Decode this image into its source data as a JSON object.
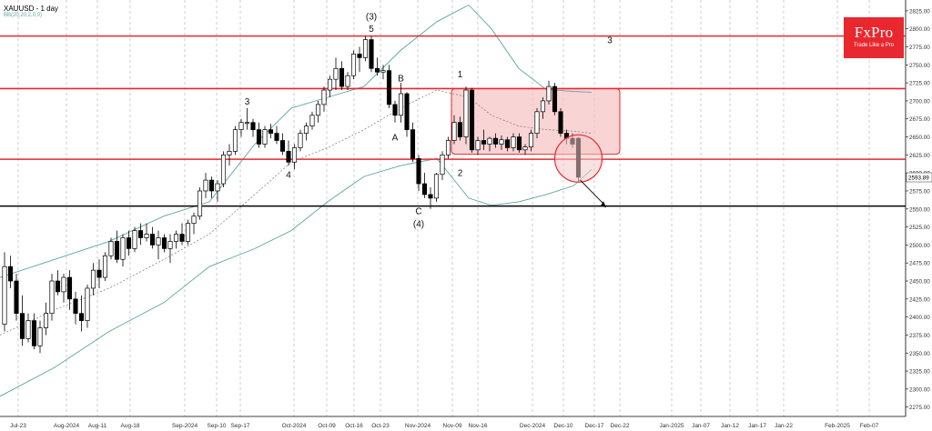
{
  "header": {
    "symbol": "XAUUSD - 1 day",
    "indicator": "BB(20,20,2,0,0)"
  },
  "logo": {
    "name": "FxPro",
    "tagline": "Trade Like a Pro"
  },
  "colors": {
    "bullish": "#ffffff",
    "bearish": "#000000",
    "level_line": "#e8282e",
    "support_line": "#000000",
    "bollinger": "#5aa5a0",
    "box_fill": "#f7c6c6"
  },
  "chart_data": {
    "type": "candlestick",
    "ylim": [
      2262,
      2840
    ],
    "y_ticks": [
      2275,
      2300,
      2325,
      2350,
      2375,
      2400,
      2425,
      2450,
      2475,
      2500,
      2525,
      2550,
      2575,
      2600,
      2625,
      2650,
      2675,
      2700,
      2725,
      2750,
      2775,
      2800,
      2825
    ],
    "x_tick_labels": [
      "Jul-23",
      "Aug-2024",
      "Aug-11",
      "Aug-18",
      "Sep-2024",
      "Sep-10",
      "Sep-17",
      "Oct-2024",
      "Oct-09",
      "Oct-16",
      "Oct-23",
      "Nov-2024",
      "Nov-09",
      "Nov-16",
      "Dec-2024",
      "Dec-10",
      "Dec-17",
      "Dec-22",
      "Jan-2025",
      "Jan-07",
      "Jan-12",
      "Jan-17",
      "Jan-22",
      "Feb-2025",
      "Feb-07"
    ],
    "last_price": 2593.89,
    "horizontal_levels": [
      {
        "value": 2790,
        "kind": "resistance"
      },
      {
        "value": 2717,
        "kind": "resistance"
      },
      {
        "value": 2619,
        "kind": "support"
      },
      {
        "value": 2554,
        "kind": "support"
      }
    ],
    "candles": [
      {
        "o": 2390,
        "h": 2490,
        "l": 2380,
        "c": 2470
      },
      {
        "o": 2470,
        "h": 2485,
        "l": 2440,
        "c": 2450
      },
      {
        "o": 2450,
        "h": 2460,
        "l": 2395,
        "c": 2405
      },
      {
        "o": 2405,
        "h": 2430,
        "l": 2360,
        "c": 2370
      },
      {
        "o": 2370,
        "h": 2405,
        "l": 2365,
        "c": 2395
      },
      {
        "o": 2395,
        "h": 2405,
        "l": 2355,
        "c": 2360
      },
      {
        "o": 2360,
        "h": 2395,
        "l": 2350,
        "c": 2385
      },
      {
        "o": 2385,
        "h": 2420,
        "l": 2375,
        "c": 2405
      },
      {
        "o": 2405,
        "h": 2460,
        "l": 2395,
        "c": 2450
      },
      {
        "o": 2450,
        "h": 2465,
        "l": 2430,
        "c": 2435
      },
      {
        "o": 2435,
        "h": 2460,
        "l": 2420,
        "c": 2455
      },
      {
        "o": 2455,
        "h": 2465,
        "l": 2410,
        "c": 2425
      },
      {
        "o": 2425,
        "h": 2435,
        "l": 2390,
        "c": 2405
      },
      {
        "o": 2405,
        "h": 2430,
        "l": 2380,
        "c": 2395
      },
      {
        "o": 2395,
        "h": 2445,
        "l": 2385,
        "c": 2440
      },
      {
        "o": 2440,
        "h": 2475,
        "l": 2430,
        "c": 2465
      },
      {
        "o": 2465,
        "h": 2480,
        "l": 2440,
        "c": 2455
      },
      {
        "o": 2455,
        "h": 2490,
        "l": 2450,
        "c": 2485
      },
      {
        "o": 2485,
        "h": 2510,
        "l": 2480,
        "c": 2505
      },
      {
        "o": 2505,
        "h": 2520,
        "l": 2475,
        "c": 2480
      },
      {
        "o": 2480,
        "h": 2515,
        "l": 2470,
        "c": 2510
      },
      {
        "o": 2510,
        "h": 2520,
        "l": 2485,
        "c": 2495
      },
      {
        "o": 2495,
        "h": 2525,
        "l": 2490,
        "c": 2520
      },
      {
        "o": 2520,
        "h": 2530,
        "l": 2500,
        "c": 2510
      },
      {
        "o": 2510,
        "h": 2530,
        "l": 2505,
        "c": 2515
      },
      {
        "o": 2515,
        "h": 2525,
        "l": 2495,
        "c": 2500
      },
      {
        "o": 2500,
        "h": 2520,
        "l": 2480,
        "c": 2510
      },
      {
        "o": 2510,
        "h": 2515,
        "l": 2490,
        "c": 2495
      },
      {
        "o": 2495,
        "h": 2515,
        "l": 2475,
        "c": 2505
      },
      {
        "o": 2505,
        "h": 2520,
        "l": 2495,
        "c": 2515
      },
      {
        "o": 2515,
        "h": 2530,
        "l": 2500,
        "c": 2505
      },
      {
        "o": 2505,
        "h": 2535,
        "l": 2500,
        "c": 2530
      },
      {
        "o": 2530,
        "h": 2545,
        "l": 2515,
        "c": 2540
      },
      {
        "o": 2540,
        "h": 2580,
        "l": 2535,
        "c": 2575
      },
      {
        "o": 2575,
        "h": 2600,
        "l": 2565,
        "c": 2590
      },
      {
        "o": 2590,
        "h": 2595,
        "l": 2565,
        "c": 2575
      },
      {
        "o": 2575,
        "h": 2590,
        "l": 2560,
        "c": 2585
      },
      {
        "o": 2585,
        "h": 2630,
        "l": 2580,
        "c": 2625
      },
      {
        "o": 2625,
        "h": 2640,
        "l": 2610,
        "c": 2630
      },
      {
        "o": 2630,
        "h": 2665,
        "l": 2625,
        "c": 2660
      },
      {
        "o": 2660,
        "h": 2675,
        "l": 2650,
        "c": 2670
      },
      {
        "o": 2670,
        "h": 2690,
        "l": 2660,
        "c": 2670
      },
      {
        "o": 2670,
        "h": 2675,
        "l": 2650,
        "c": 2660
      },
      {
        "o": 2660,
        "h": 2670,
        "l": 2635,
        "c": 2640
      },
      {
        "o": 2640,
        "h": 2665,
        "l": 2635,
        "c": 2660
      },
      {
        "o": 2660,
        "h": 2668,
        "l": 2648,
        "c": 2655
      },
      {
        "o": 2655,
        "h": 2665,
        "l": 2640,
        "c": 2645
      },
      {
        "o": 2645,
        "h": 2655,
        "l": 2625,
        "c": 2630
      },
      {
        "o": 2630,
        "h": 2645,
        "l": 2610,
        "c": 2615
      },
      {
        "o": 2615,
        "h": 2640,
        "l": 2605,
        "c": 2635
      },
      {
        "o": 2635,
        "h": 2660,
        "l": 2630,
        "c": 2655
      },
      {
        "o": 2655,
        "h": 2670,
        "l": 2645,
        "c": 2665
      },
      {
        "o": 2665,
        "h": 2685,
        "l": 2660,
        "c": 2680
      },
      {
        "o": 2680,
        "h": 2700,
        "l": 2670,
        "c": 2695
      },
      {
        "o": 2695,
        "h": 2720,
        "l": 2685,
        "c": 2715
      },
      {
        "o": 2715,
        "h": 2735,
        "l": 2705,
        "c": 2730
      },
      {
        "o": 2730,
        "h": 2760,
        "l": 2715,
        "c": 2745
      },
      {
        "o": 2745,
        "h": 2755,
        "l": 2715,
        "c": 2720
      },
      {
        "o": 2720,
        "h": 2740,
        "l": 2715,
        "c": 2735
      },
      {
        "o": 2735,
        "h": 2770,
        "l": 2730,
        "c": 2765
      },
      {
        "o": 2765,
        "h": 2775,
        "l": 2740,
        "c": 2760
      },
      {
        "o": 2760,
        "h": 2790,
        "l": 2755,
        "c": 2785
      },
      {
        "o": 2785,
        "h": 2790,
        "l": 2740,
        "c": 2745
      },
      {
        "o": 2745,
        "h": 2760,
        "l": 2735,
        "c": 2740
      },
      {
        "o": 2740,
        "h": 2750,
        "l": 2730,
        "c": 2742
      },
      {
        "o": 2742,
        "h": 2750,
        "l": 2690,
        "c": 2695
      },
      {
        "o": 2695,
        "h": 2700,
        "l": 2670,
        "c": 2680
      },
      {
        "o": 2680,
        "h": 2725,
        "l": 2670,
        "c": 2710
      },
      {
        "o": 2710,
        "h": 2712,
        "l": 2650,
        "c": 2660
      },
      {
        "o": 2660,
        "h": 2670,
        "l": 2615,
        "c": 2620
      },
      {
        "o": 2620,
        "h": 2625,
        "l": 2575,
        "c": 2585
      },
      {
        "o": 2585,
        "h": 2600,
        "l": 2565,
        "c": 2570
      },
      {
        "o": 2570,
        "h": 2580,
        "l": 2550,
        "c": 2565
      },
      {
        "o": 2565,
        "h": 2600,
        "l": 2560,
        "c": 2598
      },
      {
        "o": 2598,
        "h": 2630,
        "l": 2590,
        "c": 2625
      },
      {
        "o": 2625,
        "h": 2650,
        "l": 2620,
        "c": 2645
      },
      {
        "o": 2645,
        "h": 2680,
        "l": 2640,
        "c": 2670
      },
      {
        "o": 2670,
        "h": 2678,
        "l": 2645,
        "c": 2650
      },
      {
        "o": 2650,
        "h": 2720,
        "l": 2640,
        "c": 2715
      },
      {
        "o": 2715,
        "h": 2718,
        "l": 2628,
        "c": 2632
      },
      {
        "o": 2632,
        "h": 2650,
        "l": 2625,
        "c": 2645
      },
      {
        "o": 2645,
        "h": 2660,
        "l": 2632,
        "c": 2640
      },
      {
        "o": 2640,
        "h": 2650,
        "l": 2630,
        "c": 2648
      },
      {
        "o": 2648,
        "h": 2655,
        "l": 2635,
        "c": 2640
      },
      {
        "o": 2640,
        "h": 2652,
        "l": 2632,
        "c": 2646
      },
      {
        "o": 2646,
        "h": 2650,
        "l": 2630,
        "c": 2635
      },
      {
        "o": 2635,
        "h": 2655,
        "l": 2630,
        "c": 2650
      },
      {
        "o": 2650,
        "h": 2655,
        "l": 2628,
        "c": 2632
      },
      {
        "o": 2632,
        "h": 2640,
        "l": 2625,
        "c": 2636
      },
      {
        "o": 2636,
        "h": 2660,
        "l": 2630,
        "c": 2655
      },
      {
        "o": 2655,
        "h": 2690,
        "l": 2648,
        "c": 2685
      },
      {
        "o": 2685,
        "h": 2705,
        "l": 2675,
        "c": 2700
      },
      {
        "o": 2700,
        "h": 2728,
        "l": 2695,
        "c": 2720
      },
      {
        "o": 2720,
        "h": 2725,
        "l": 2680,
        "c": 2685
      },
      {
        "o": 2685,
        "h": 2690,
        "l": 2650,
        "c": 2655
      },
      {
        "o": 2655,
        "h": 2660,
        "l": 2640,
        "c": 2648
      },
      {
        "o": 2648,
        "h": 2655,
        "l": 2635,
        "c": 2640
      },
      {
        "o": 2648,
        "h": 2650,
        "l": 2588,
        "c": 2594
      }
    ],
    "annotations": [
      {
        "text": "(3)",
        "candle": 62,
        "y": 2813
      },
      {
        "text": "5",
        "candle": 62,
        "y": 2796
      },
      {
        "text": "3",
        "candle": 41,
        "y": 2695
      },
      {
        "text": "4",
        "candle": 48,
        "y": 2593
      },
      {
        "text": "B",
        "candle": 67,
        "y": 2727
      },
      {
        "text": "A",
        "candle": 66,
        "y": 2645
      },
      {
        "text": "C",
        "candle": 70,
        "y": 2543
      },
      {
        "text": "(4)",
        "candle": 70,
        "y": 2525
      },
      {
        "text": "1",
        "candle": 77,
        "y": 2733
      },
      {
        "text": "2",
        "candle": 77,
        "y": 2596
      },
      {
        "text": "3",
        "candle": 92,
        "y": 2780
      }
    ]
  }
}
